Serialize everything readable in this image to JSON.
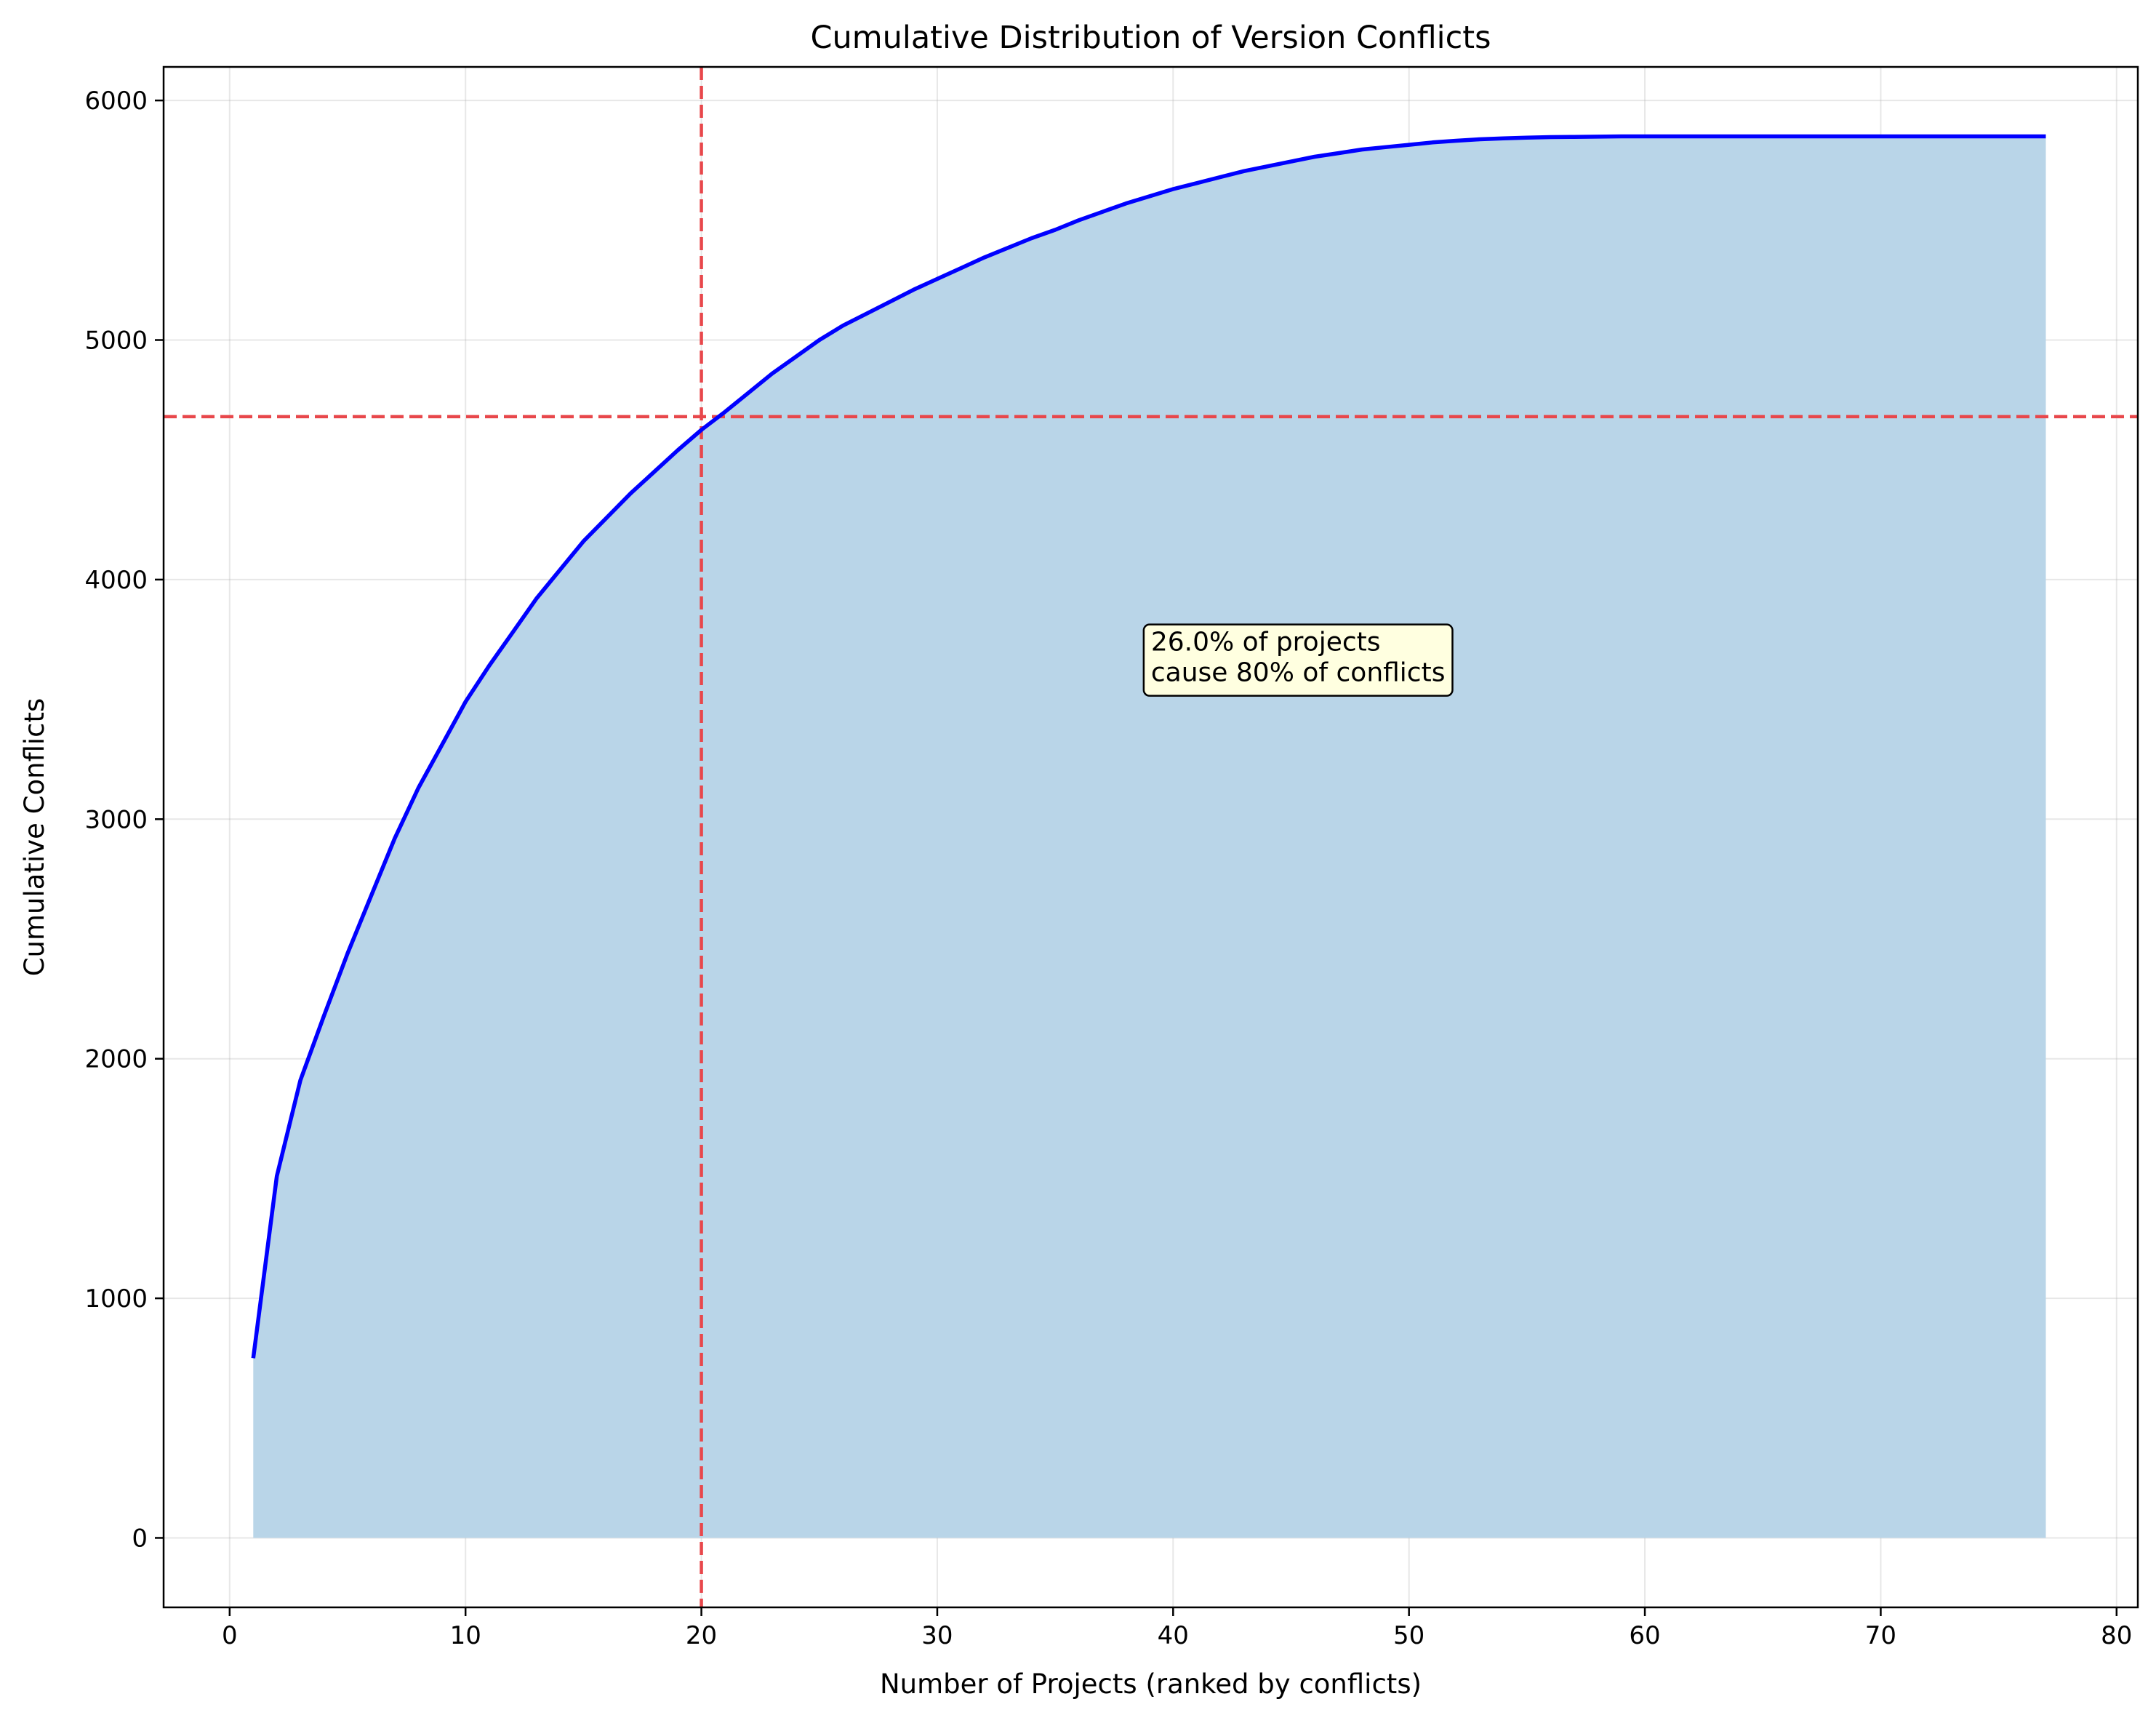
{
  "chart_data": {
    "type": "area",
    "title": "Cumulative Distribution of Version Conflicts",
    "xlabel": "Number of Projects (ranked by conflicts)",
    "ylabel": "Cumulative Conflicts",
    "xlim": [
      -2.8,
      80.9
    ],
    "ylim": [
      -290,
      6140
    ],
    "xticks": [
      0,
      10,
      20,
      30,
      40,
      50,
      60,
      70,
      80
    ],
    "yticks": [
      0,
      1000,
      2000,
      3000,
      4000,
      5000,
      6000
    ],
    "grid": true,
    "series": [
      {
        "color": "#0000ff",
        "fill_color": "#b9d5e8",
        "x": [
          1,
          2,
          3,
          4,
          5,
          6,
          7,
          8,
          9,
          10,
          11,
          12,
          13,
          14,
          15,
          16,
          17,
          18,
          19,
          20,
          21,
          22,
          23,
          24,
          25,
          26,
          27,
          28,
          29,
          30,
          31,
          32,
          33,
          34,
          35,
          36,
          37,
          38,
          39,
          40,
          41,
          42,
          43,
          44,
          45,
          46,
          47,
          48,
          49,
          50,
          51,
          52,
          53,
          54,
          55,
          56,
          57,
          58,
          59,
          60,
          61,
          62,
          63,
          64,
          65,
          66,
          67,
          68,
          69,
          70,
          71,
          72,
          73,
          74,
          75,
          76,
          77
        ],
        "y": [
          750,
          1510,
          1910,
          2180,
          2440,
          2680,
          2920,
          3130,
          3310,
          3490,
          3640,
          3780,
          3920,
          4040,
          4160,
          4260,
          4360,
          4450,
          4540,
          4625,
          4700,
          4780,
          4860,
          4930,
          5000,
          5060,
          5110,
          5160,
          5210,
          5255,
          5300,
          5345,
          5385,
          5425,
          5460,
          5500,
          5535,
          5570,
          5600,
          5630,
          5655,
          5680,
          5705,
          5725,
          5745,
          5765,
          5780,
          5795,
          5805,
          5815,
          5825,
          5832,
          5838,
          5842,
          5845,
          5847,
          5848,
          5849,
          5850,
          5850,
          5850,
          5850,
          5850,
          5850,
          5850,
          5850,
          5850,
          5850,
          5850,
          5850,
          5850,
          5850,
          5850,
          5850,
          5850,
          5850,
          5850
        ]
      }
    ],
    "reference_lines": {
      "vertical_x": 20,
      "horizontal_y": 4680,
      "color": "#e8474b"
    },
    "annotation": {
      "lines": [
        "26.0% of projects",
        "cause 80% of conflicts"
      ],
      "x": 39,
      "y": 3600,
      "box_color": "#ffffe0"
    }
  }
}
